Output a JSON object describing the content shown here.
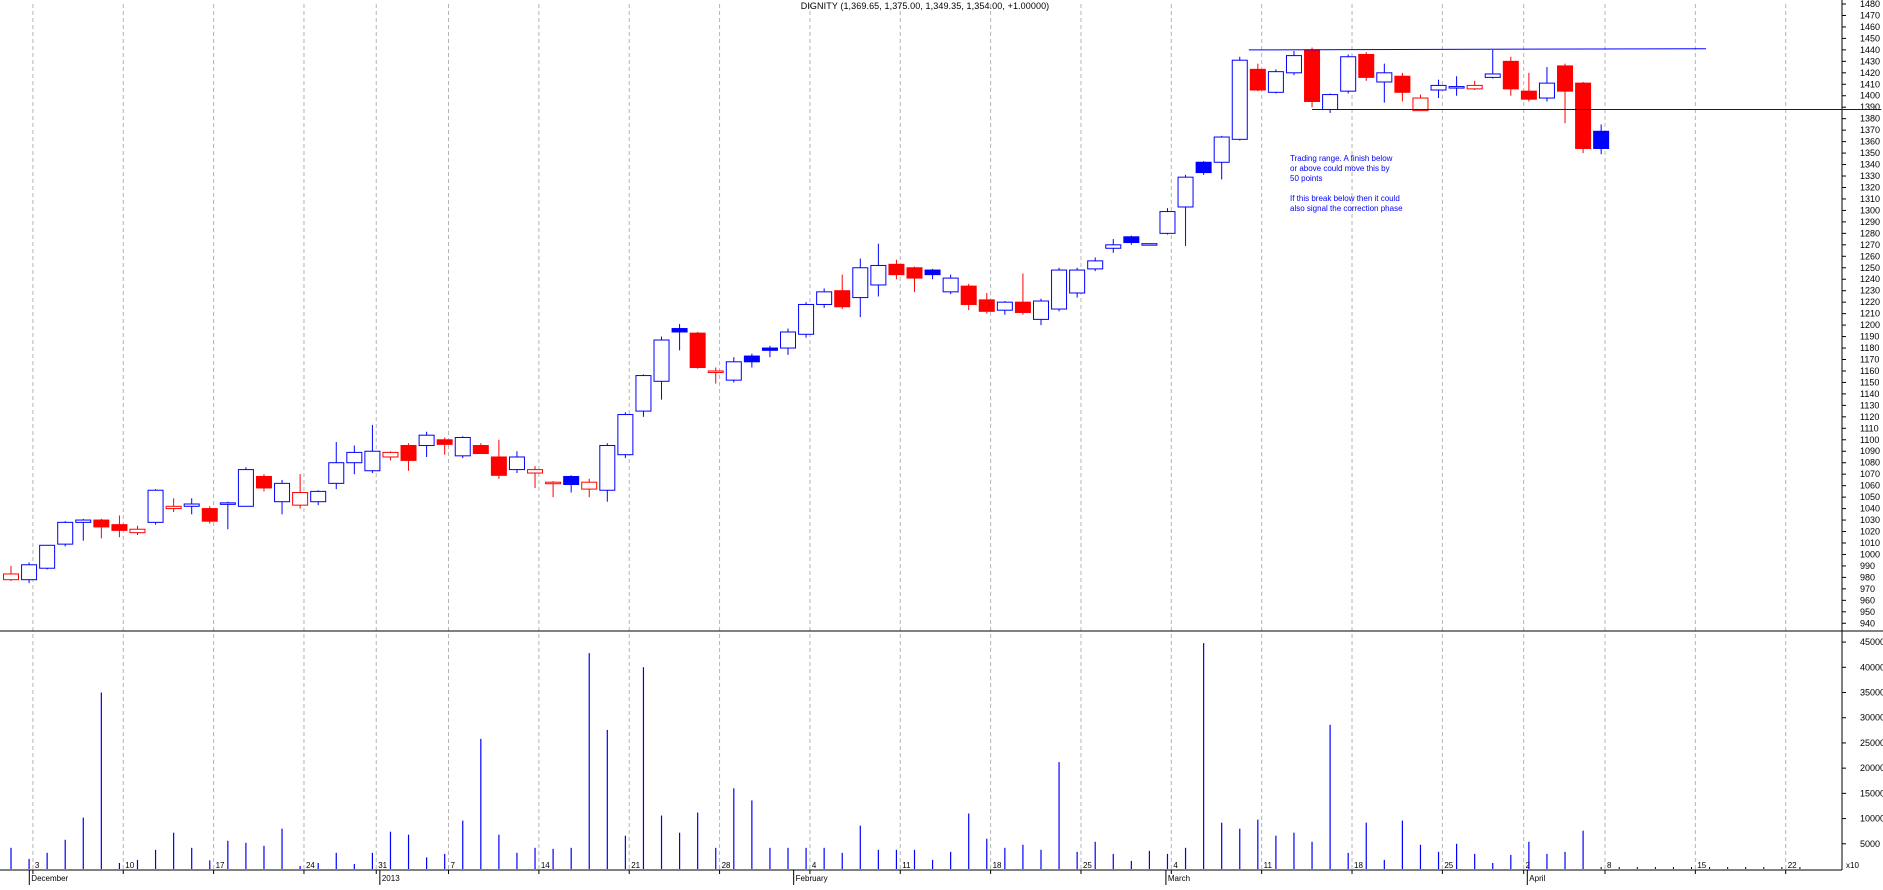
{
  "chart_data": [
    {
      "type": "candlestick",
      "title": "DIGNITY (1,369.65, 1,375.00, 1,349.35, 1,354.00, +1.00000)",
      "ylim": [
        935,
        1480
      ],
      "y_ticks": [
        940,
        950,
        960,
        970,
        980,
        990,
        1000,
        1010,
        1020,
        1030,
        1040,
        1050,
        1060,
        1070,
        1080,
        1090,
        1100,
        1110,
        1120,
        1130,
        1140,
        1150,
        1160,
        1170,
        1180,
        1190,
        1200,
        1210,
        1220,
        1230,
        1240,
        1250,
        1260,
        1270,
        1280,
        1290,
        1300,
        1310,
        1320,
        1330,
        1340,
        1350,
        1360,
        1370,
        1380,
        1390,
        1400,
        1410,
        1420,
        1430,
        1440,
        1450,
        1460,
        1470,
        1480
      ],
      "grid": "vertical dashed at week starts",
      "colors": {
        "up": "#0000ff",
        "down": "#ff0000",
        "axis": "#000000",
        "grid": "#b4b4b4"
      },
      "candles": [
        {
          "o": 983,
          "h": 990,
          "l": 977,
          "c": 978,
          "fill": "hollow",
          "color": "red"
        },
        {
          "o": 978,
          "h": 993,
          "l": 975,
          "c": 991,
          "fill": "hollow",
          "color": "blue"
        },
        {
          "o": 988,
          "h": 1008,
          "l": 987,
          "c": 1008,
          "fill": "hollow",
          "color": "blue"
        },
        {
          "o": 1009,
          "h": 1029,
          "l": 1007,
          "c": 1028,
          "fill": "hollow",
          "color": "blue"
        },
        {
          "o": 1028,
          "h": 1031,
          "l": 1012,
          "c": 1030,
          "fill": "hollow",
          "color": "blue"
        },
        {
          "o": 1030,
          "h": 1031,
          "l": 1014,
          "c": 1024,
          "fill": "solid",
          "color": "red"
        },
        {
          "o": 1026,
          "h": 1034,
          "l": 1015,
          "c": 1021,
          "fill": "solid",
          "color": "red"
        },
        {
          "o": 1019,
          "h": 1025,
          "l": 1017,
          "c": 1022,
          "fill": "hollow",
          "color": "red"
        },
        {
          "o": 1028,
          "h": 1057,
          "l": 1026,
          "c": 1056,
          "fill": "hollow",
          "color": "blue"
        },
        {
          "o": 1040,
          "h": 1049,
          "l": 1037,
          "c": 1042,
          "fill": "hollow",
          "color": "red"
        },
        {
          "o": 1042,
          "h": 1049,
          "l": 1035,
          "c": 1044,
          "fill": "hollow",
          "color": "blue"
        },
        {
          "o": 1040,
          "h": 1042,
          "l": 1027,
          "c": 1029,
          "fill": "solid",
          "color": "red"
        },
        {
          "o": 1044,
          "h": 1046,
          "l": 1022,
          "c": 1045,
          "fill": "hollow",
          "color": "blue"
        },
        {
          "o": 1042,
          "h": 1076,
          "l": 1042,
          "c": 1074,
          "fill": "hollow",
          "color": "blue"
        },
        {
          "o": 1068,
          "h": 1070,
          "l": 1055,
          "c": 1058,
          "fill": "solid",
          "color": "red"
        },
        {
          "o": 1046,
          "h": 1065,
          "l": 1035,
          "c": 1062,
          "fill": "hollow",
          "color": "blue"
        },
        {
          "o": 1054,
          "h": 1070,
          "l": 1040,
          "c": 1043,
          "fill": "hollow",
          "color": "red"
        },
        {
          "o": 1046,
          "h": 1056,
          "l": 1043,
          "c": 1055,
          "fill": "hollow",
          "color": "blue"
        },
        {
          "o": 1062,
          "h": 1098,
          "l": 1057,
          "c": 1080,
          "fill": "hollow",
          "color": "blue"
        },
        {
          "o": 1080,
          "h": 1095,
          "l": 1070,
          "c": 1089,
          "fill": "hollow",
          "color": "blue"
        },
        {
          "o": 1073,
          "h": 1113,
          "l": 1071,
          "c": 1090,
          "fill": "hollow",
          "color": "blue"
        },
        {
          "o": 1089,
          "h": 1090,
          "l": 1082,
          "c": 1085,
          "fill": "hollow",
          "color": "red"
        },
        {
          "o": 1095,
          "h": 1097,
          "l": 1073,
          "c": 1082,
          "fill": "solid",
          "color": "red"
        },
        {
          "o": 1095,
          "h": 1107,
          "l": 1085,
          "c": 1104,
          "fill": "hollow",
          "color": "blue"
        },
        {
          "o": 1100,
          "h": 1102,
          "l": 1087,
          "c": 1096,
          "fill": "solid",
          "color": "red"
        },
        {
          "o": 1086,
          "h": 1103,
          "l": 1084,
          "c": 1102,
          "fill": "hollow",
          "color": "blue"
        },
        {
          "o": 1095,
          "h": 1097,
          "l": 1088,
          "c": 1088,
          "fill": "solid",
          "color": "red"
        },
        {
          "o": 1085,
          "h": 1100,
          "l": 1066,
          "c": 1069,
          "fill": "solid",
          "color": "red"
        },
        {
          "o": 1074,
          "h": 1090,
          "l": 1071,
          "c": 1085,
          "fill": "hollow",
          "color": "blue"
        },
        {
          "o": 1074,
          "h": 1077,
          "l": 1058,
          "c": 1071,
          "fill": "hollow",
          "color": "red"
        },
        {
          "o": 1063,
          "h": 1064,
          "l": 1050,
          "c": 1062,
          "fill": "hollow",
          "color": "red"
        },
        {
          "o": 1061,
          "h": 1069,
          "l": 1054,
          "c": 1068,
          "fill": "solid",
          "color": "blue"
        },
        {
          "o": 1063,
          "h": 1066,
          "l": 1050,
          "c": 1057,
          "fill": "hollow",
          "color": "red"
        },
        {
          "o": 1056,
          "h": 1097,
          "l": 1046,
          "c": 1095,
          "fill": "hollow",
          "color": "blue"
        },
        {
          "o": 1087,
          "h": 1124,
          "l": 1084,
          "c": 1122,
          "fill": "hollow",
          "color": "blue"
        },
        {
          "o": 1125,
          "h": 1157,
          "l": 1120,
          "c": 1156,
          "fill": "hollow",
          "color": "blue"
        },
        {
          "o": 1151,
          "h": 1190,
          "l": 1135,
          "c": 1187,
          "fill": "hollow",
          "color": "blue"
        },
        {
          "o": 1194,
          "h": 1201,
          "l": 1178,
          "c": 1197,
          "fill": "solid",
          "color": "blue"
        },
        {
          "o": 1193,
          "h": 1194,
          "l": 1162,
          "c": 1163,
          "fill": "solid",
          "color": "red"
        },
        {
          "o": 1160,
          "h": 1163,
          "l": 1149,
          "c": 1160,
          "fill": "hollow",
          "color": "red"
        },
        {
          "o": 1152,
          "h": 1172,
          "l": 1150,
          "c": 1168,
          "fill": "hollow",
          "color": "blue"
        },
        {
          "o": 1168,
          "h": 1175,
          "l": 1163,
          "c": 1173,
          "fill": "solid",
          "color": "blue"
        },
        {
          "o": 1178,
          "h": 1182,
          "l": 1172,
          "c": 1180,
          "fill": "solid",
          "color": "blue"
        },
        {
          "o": 1180,
          "h": 1197,
          "l": 1174,
          "c": 1194,
          "fill": "hollow",
          "color": "blue"
        },
        {
          "o": 1192,
          "h": 1220,
          "l": 1189,
          "c": 1218,
          "fill": "hollow",
          "color": "blue"
        },
        {
          "o": 1218,
          "h": 1232,
          "l": 1215,
          "c": 1229,
          "fill": "hollow",
          "color": "blue"
        },
        {
          "o": 1230,
          "h": 1244,
          "l": 1214,
          "c": 1216,
          "fill": "solid",
          "color": "red"
        },
        {
          "o": 1224,
          "h": 1258,
          "l": 1207,
          "c": 1250,
          "fill": "hollow",
          "color": "blue"
        },
        {
          "o": 1235,
          "h": 1271,
          "l": 1225,
          "c": 1252,
          "fill": "hollow",
          "color": "blue"
        },
        {
          "o": 1253,
          "h": 1257,
          "l": 1240,
          "c": 1244,
          "fill": "solid",
          "color": "red"
        },
        {
          "o": 1250,
          "h": 1251,
          "l": 1229,
          "c": 1241,
          "fill": "solid",
          "color": "red"
        },
        {
          "o": 1248,
          "h": 1249,
          "l": 1240,
          "c": 1244,
          "fill": "solid",
          "color": "blue"
        },
        {
          "o": 1241,
          "h": 1244,
          "l": 1227,
          "c": 1229,
          "fill": "hollow",
          "color": "blue"
        },
        {
          "o": 1234,
          "h": 1236,
          "l": 1213,
          "c": 1218,
          "fill": "solid",
          "color": "red"
        },
        {
          "o": 1222,
          "h": 1228,
          "l": 1210,
          "c": 1212,
          "fill": "solid",
          "color": "red"
        },
        {
          "o": 1213,
          "h": 1221,
          "l": 1209,
          "c": 1220,
          "fill": "hollow",
          "color": "blue"
        },
        {
          "o": 1220,
          "h": 1245,
          "l": 1209,
          "c": 1211,
          "fill": "solid",
          "color": "red"
        },
        {
          "o": 1205,
          "h": 1223,
          "l": 1200,
          "c": 1221,
          "fill": "hollow",
          "color": "blue"
        },
        {
          "o": 1214,
          "h": 1250,
          "l": 1212,
          "c": 1248,
          "fill": "hollow",
          "color": "blue"
        },
        {
          "o": 1228,
          "h": 1250,
          "l": 1224,
          "c": 1248,
          "fill": "hollow",
          "color": "blue"
        },
        {
          "o": 1249,
          "h": 1259,
          "l": 1247,
          "c": 1256,
          "fill": "hollow",
          "color": "blue"
        },
        {
          "o": 1267,
          "h": 1275,
          "l": 1263,
          "c": 1270,
          "fill": "hollow",
          "color": "blue"
        },
        {
          "o": 1272,
          "h": 1278,
          "l": 1270,
          "c": 1277,
          "fill": "solid",
          "color": "blue"
        },
        {
          "o": 1270,
          "h": 1271,
          "l": 1270,
          "c": 1271,
          "fill": "hollow",
          "color": "blue"
        },
        {
          "o": 1280,
          "h": 1302,
          "l": 1279,
          "c": 1299,
          "fill": "hollow",
          "color": "blue"
        },
        {
          "o": 1303,
          "h": 1331,
          "l": 1269,
          "c": 1329,
          "fill": "hollow",
          "color": "blue"
        },
        {
          "o": 1333,
          "h": 1343,
          "l": 1331,
          "c": 1342,
          "fill": "solid",
          "color": "blue"
        },
        {
          "o": 1342,
          "h": 1365,
          "l": 1327,
          "c": 1364,
          "fill": "hollow",
          "color": "blue"
        },
        {
          "o": 1362,
          "h": 1434,
          "l": 1361,
          "c": 1431,
          "fill": "hollow",
          "color": "blue"
        },
        {
          "o": 1423,
          "h": 1428,
          "l": 1404,
          "c": 1405,
          "fill": "solid",
          "color": "red"
        },
        {
          "o": 1403,
          "h": 1423,
          "l": 1402,
          "c": 1421,
          "fill": "hollow",
          "color": "blue"
        },
        {
          "o": 1420,
          "h": 1439,
          "l": 1418,
          "c": 1435,
          "fill": "hollow",
          "color": "blue"
        },
        {
          "o": 1440,
          "h": 1442,
          "l": 1390,
          "c": 1395,
          "fill": "solid",
          "color": "red"
        },
        {
          "o": 1388,
          "h": 1402,
          "l": 1385,
          "c": 1401,
          "fill": "hollow",
          "color": "blue"
        },
        {
          "o": 1404,
          "h": 1436,
          "l": 1402,
          "c": 1434,
          "fill": "hollow",
          "color": "blue"
        },
        {
          "o": 1436,
          "h": 1438,
          "l": 1413,
          "c": 1416,
          "fill": "solid",
          "color": "red"
        },
        {
          "o": 1412,
          "h": 1428,
          "l": 1394,
          "c": 1420,
          "fill": "hollow",
          "color": "blue"
        },
        {
          "o": 1417,
          "h": 1420,
          "l": 1395,
          "c": 1403,
          "fill": "solid",
          "color": "red"
        },
        {
          "o": 1398,
          "h": 1401,
          "l": 1388,
          "c": 1387,
          "fill": "hollow",
          "color": "red"
        },
        {
          "o": 1405,
          "h": 1414,
          "l": 1398,
          "c": 1409,
          "fill": "hollow",
          "color": "blue"
        },
        {
          "o": 1408,
          "h": 1417,
          "l": 1400,
          "c": 1407,
          "fill": "hollow",
          "color": "blue"
        },
        {
          "o": 1409,
          "h": 1413,
          "l": 1405,
          "c": 1406,
          "fill": "hollow",
          "color": "red"
        },
        {
          "o": 1416,
          "h": 1440,
          "l": 1415,
          "c": 1419,
          "fill": "hollow",
          "color": "blue"
        },
        {
          "o": 1430,
          "h": 1434,
          "l": 1400,
          "c": 1406,
          "fill": "solid",
          "color": "red"
        },
        {
          "o": 1404,
          "h": 1420,
          "l": 1395,
          "c": 1397,
          "fill": "solid",
          "color": "red"
        },
        {
          "o": 1398,
          "h": 1425,
          "l": 1395,
          "c": 1411,
          "fill": "hollow",
          "color": "blue"
        },
        {
          "o": 1426,
          "h": 1428,
          "l": 1376,
          "c": 1404,
          "fill": "solid",
          "color": "red"
        },
        {
          "o": 1411,
          "h": 1412,
          "l": 1350,
          "c": 1354,
          "fill": "solid",
          "color": "red"
        },
        {
          "o": 1354,
          "h": 1375,
          "l": 1349,
          "c": 1369,
          "fill": "solid",
          "color": "blue"
        }
      ],
      "annotation_lines": [
        {
          "x1": 68.5,
          "y1": 1440,
          "x2": 93.8,
          "y2": 1441
        },
        {
          "x1": 72.0,
          "y1": 1388,
          "x2": 103.5,
          "y2": 1388
        }
      ],
      "annotations": [
        {
          "lines": [
            "Trading range. A finish below",
            "or above could move this by",
            "50 points",
            "",
            "If this break below then it could",
            "also signal the correction phase"
          ]
        }
      ]
    },
    {
      "type": "bar",
      "ylim": [
        0,
        47000
      ],
      "y_ticks": [
        5000,
        10000,
        15000,
        20000,
        25000,
        30000,
        35000,
        40000,
        45000
      ],
      "x_tick_labels": [
        {
          "pos": 1.6,
          "label": "3"
        },
        {
          "pos": 6.6,
          "label": "10"
        },
        {
          "pos": 11.6,
          "label": "17"
        },
        {
          "pos": 16.6,
          "label": "24"
        },
        {
          "pos": 20.6,
          "label": "31"
        },
        {
          "pos": 24.6,
          "label": "7"
        },
        {
          "pos": 29.6,
          "label": "14"
        },
        {
          "pos": 34.6,
          "label": "21"
        },
        {
          "pos": 39.6,
          "label": "28"
        },
        {
          "pos": 44.6,
          "label": "4"
        },
        {
          "pos": 49.6,
          "label": "11"
        },
        {
          "pos": 54.6,
          "label": "18"
        },
        {
          "pos": 59.6,
          "label": "25"
        },
        {
          "pos": 64.6,
          "label": "4"
        },
        {
          "pos": 69.6,
          "label": "11"
        },
        {
          "pos": 74.6,
          "label": "18"
        },
        {
          "pos": 79.6,
          "label": "25"
        },
        {
          "pos": 84.1,
          "label": "2"
        },
        {
          "pos": 88.6,
          "label": "8"
        },
        {
          "pos": 93.6,
          "label": "15"
        },
        {
          "pos": 98.6,
          "label": "22"
        }
      ],
      "month_labels": [
        {
          "pos": 1.4,
          "label": "December"
        },
        {
          "pos": 20.8,
          "label": "2013"
        },
        {
          "pos": 43.7,
          "label": "February"
        },
        {
          "pos": 64.3,
          "label": "March"
        },
        {
          "pos": 84.3,
          "label": "April"
        }
      ],
      "axis_corner_label": "x10",
      "colors": {
        "bar": "#0000ff",
        "axis": "#000000",
        "grid": "#b4b4b4"
      },
      "values": [
        4200,
        2000,
        3200,
        5800,
        10200,
        35000,
        1200,
        1800,
        3800,
        7200,
        4200,
        1700,
        5600,
        5200,
        4600,
        8000,
        600,
        1200,
        3200,
        1000,
        3200,
        7400,
        6800,
        2300,
        3000,
        9600,
        25800,
        6800,
        3200,
        4200,
        4000,
        4200,
        42800,
        27600,
        6600,
        40000,
        10600,
        7200,
        11200,
        4200,
        16000,
        13600,
        4200,
        4200,
        4200,
        4200,
        3200,
        8600,
        3800,
        3800,
        3800,
        1800,
        3400,
        11000,
        6000,
        4200,
        4800,
        3800,
        21200,
        3400,
        5400,
        3000,
        1600,
        3600,
        3000,
        4200,
        44800,
        9200,
        8000,
        9800,
        6600,
        7200,
        5400,
        28600,
        3200,
        9200,
        1800,
        9600,
        4800,
        3400,
        5000,
        3000,
        1200,
        2800,
        5400,
        3000,
        3400,
        7600
      ]
    }
  ]
}
